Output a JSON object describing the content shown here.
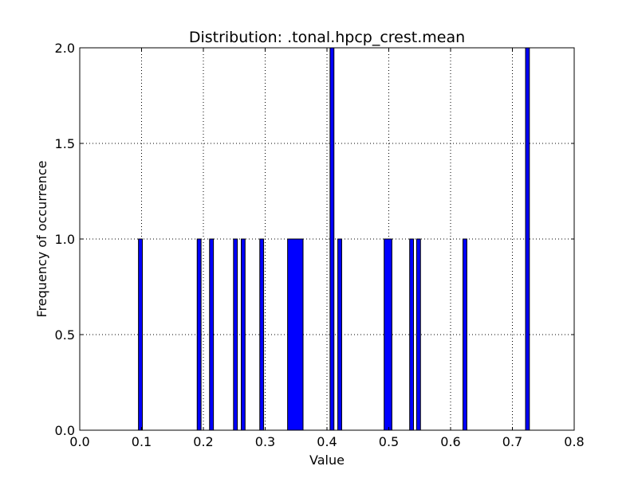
{
  "chart_data": {
    "type": "bar",
    "title": "Distribution: .tonal.hpcp_crest.mean",
    "xlabel": "Value",
    "ylabel": "Frequency of occurrence",
    "xlim": [
      0.0,
      0.8
    ],
    "ylim": [
      0.0,
      2.0
    ],
    "xticks": [
      "0.0",
      "0.1",
      "0.2",
      "0.3",
      "0.4",
      "0.5",
      "0.6",
      "0.7",
      "0.8"
    ],
    "yticks": [
      "0.0",
      "0.5",
      "1.0",
      "1.5",
      "2.0"
    ],
    "grid": true,
    "bar_color": "#0000ff",
    "bins": [
      {
        "x0": 0.095,
        "x1": 0.1013,
        "count": 1
      },
      {
        "x0": 0.19,
        "x1": 0.1963,
        "count": 1
      },
      {
        "x0": 0.21,
        "x1": 0.2163,
        "count": 1
      },
      {
        "x0": 0.2488,
        "x1": 0.255,
        "count": 1
      },
      {
        "x0": 0.2613,
        "x1": 0.2675,
        "count": 1
      },
      {
        "x0": 0.2913,
        "x1": 0.2975,
        "count": 1
      },
      {
        "x0": 0.3363,
        "x1": 0.3613,
        "count": 1
      },
      {
        "x0": 0.405,
        "x1": 0.4113,
        "count": 2
      },
      {
        "x0": 0.4175,
        "x1": 0.4238,
        "count": 1
      },
      {
        "x0": 0.4925,
        "x1": 0.505,
        "count": 1
      },
      {
        "x0": 0.5338,
        "x1": 0.54,
        "count": 1
      },
      {
        "x0": 0.545,
        "x1": 0.5513,
        "count": 1
      },
      {
        "x0": 0.62,
        "x1": 0.6263,
        "count": 1
      },
      {
        "x0": 0.7213,
        "x1": 0.7275,
        "count": 2
      }
    ]
  }
}
